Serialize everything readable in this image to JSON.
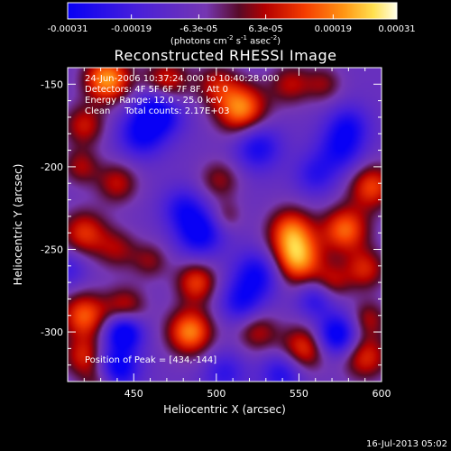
{
  "colorbar": {
    "tick_labels": [
      "-0.00031",
      "-0.00019",
      "-6.3e-05",
      "6.3e-05",
      "0.00019",
      "0.00031"
    ],
    "unit_prefix": "(photons cm",
    "unit_exp1": "-2",
    "unit_mid": " s",
    "unit_exp2": "-1",
    "unit_mid2": " asec",
    "unit_exp3": "-2",
    "unit_suffix": ")"
  },
  "header": {
    "title": "Reconstructed RHESSI Image"
  },
  "info": {
    "line1": "24-Jun-2006 10:37:24.000 to 10:40:28.000",
    "line2": "Detectors: 4F 5F 6F 7F 8F, Att 0",
    "line3": "Energy Range: 12.0 - 25.0 keV",
    "line4": "Clean     Total counts: 2.17E+03",
    "peak": "Position of Peak = [434,-144]"
  },
  "footer": {
    "date": "16-Jul-2013 05:02"
  },
  "colors": {
    "background": "#000000",
    "text": "#ffffff"
  },
  "chart_data": {
    "type": "heatmap",
    "title": "Reconstructed RHESSI Image",
    "xlabel": "Heliocentric X (arcsec)",
    "ylabel": "Heliocentric Y (arcsec)",
    "xlim": [
      410,
      600
    ],
    "ylim": [
      -330,
      -140
    ],
    "x_ticks": [
      450,
      500,
      550,
      600
    ],
    "y_ticks": [
      -150,
      -200,
      -250,
      -300
    ],
    "colorbar_range": [
      -0.00031,
      0.00031
    ],
    "colorbar_ticks": [
      -0.00031,
      -0.00019,
      -6.3e-05,
      6.3e-05,
      0.00019,
      0.00031
    ],
    "colormap": "blue-purple-red-orange-yellow-white",
    "peak": [
      434,
      -144
    ],
    "sources": [
      {
        "x": 434,
        "y": -147,
        "v": 0.0003,
        "w": 10
      },
      {
        "x": 470,
        "y": -148,
        "v": 0.00018,
        "w": 10
      },
      {
        "x": 515,
        "y": -165,
        "v": 0.00029,
        "w": 11
      },
      {
        "x": 500,
        "y": -150,
        "v": 0.00014,
        "w": 9
      },
      {
        "x": 545,
        "y": -150,
        "v": 0.00015,
        "w": 9
      },
      {
        "x": 565,
        "y": -150,
        "v": 0.00012,
        "w": 8
      },
      {
        "x": 420,
        "y": -175,
        "v": 0.00017,
        "w": 9
      },
      {
        "x": 418,
        "y": -200,
        "v": 0.00014,
        "w": 8
      },
      {
        "x": 420,
        "y": -240,
        "v": 0.0002,
        "w": 10
      },
      {
        "x": 440,
        "y": -250,
        "v": 0.00013,
        "w": 9
      },
      {
        "x": 460,
        "y": -257,
        "v": 0.00012,
        "w": 8
      },
      {
        "x": 440,
        "y": -210,
        "v": 0.00016,
        "w": 9
      },
      {
        "x": 502,
        "y": -208,
        "v": 0.00013,
        "w": 9
      },
      {
        "x": 506,
        "y": -230,
        "v": 0.0001,
        "w": 7
      },
      {
        "x": 549,
        "y": -256,
        "v": 0.0003,
        "w": 11
      },
      {
        "x": 545,
        "y": -238,
        "v": 0.00022,
        "w": 10
      },
      {
        "x": 578,
        "y": -238,
        "v": 0.00025,
        "w": 10
      },
      {
        "x": 594,
        "y": -212,
        "v": 0.00022,
        "w": 10
      },
      {
        "x": 590,
        "y": -262,
        "v": 0.00018,
        "w": 9
      },
      {
        "x": 570,
        "y": -270,
        "v": 0.00014,
        "w": 8
      },
      {
        "x": 484,
        "y": -300,
        "v": 0.00028,
        "w": 10
      },
      {
        "x": 488,
        "y": -270,
        "v": 0.00021,
        "w": 9
      },
      {
        "x": 420,
        "y": -290,
        "v": 0.00024,
        "w": 10
      },
      {
        "x": 445,
        "y": -285,
        "v": 0.00017,
        "w": 9
      },
      {
        "x": 420,
        "y": -315,
        "v": 0.00018,
        "w": 9
      },
      {
        "x": 525,
        "y": -300,
        "v": 0.00015,
        "w": 9
      },
      {
        "x": 553,
        "y": -310,
        "v": 0.00022,
        "w": 10
      },
      {
        "x": 592,
        "y": -292,
        "v": 0.00014,
        "w": 8
      },
      {
        "x": 590,
        "y": -315,
        "v": 0.0002,
        "w": 10
      },
      {
        "x": 430,
        "y": -330,
        "v": 0.00012,
        "w": 8
      },
      {
        "x": 440,
        "y": -322,
        "v": -0.00026,
        "w": 9
      },
      {
        "x": 444,
        "y": -300,
        "v": -0.0003,
        "w": 8
      },
      {
        "x": 455,
        "y": -180,
        "v": -0.00022,
        "w": 10
      },
      {
        "x": 470,
        "y": -170,
        "v": -0.00012,
        "w": 9
      },
      {
        "x": 462,
        "y": -165,
        "v": -0.00018,
        "w": 8
      },
      {
        "x": 490,
        "y": -240,
        "v": -0.00024,
        "w": 10
      },
      {
        "x": 480,
        "y": -225,
        "v": -0.00016,
        "w": 9
      },
      {
        "x": 525,
        "y": -188,
        "v": -0.0002,
        "w": 10
      },
      {
        "x": 575,
        "y": -190,
        "v": -0.00018,
        "w": 10
      },
      {
        "x": 580,
        "y": -175,
        "v": -0.00016,
        "w": 9
      },
      {
        "x": 560,
        "y": -205,
        "v": -0.00014,
        "w": 9
      },
      {
        "x": 525,
        "y": -265,
        "v": -0.00022,
        "w": 10
      },
      {
        "x": 515,
        "y": -282,
        "v": -0.00018,
        "w": 9
      },
      {
        "x": 560,
        "y": -280,
        "v": -0.00016,
        "w": 8
      },
      {
        "x": 573,
        "y": -302,
        "v": -0.00028,
        "w": 9
      },
      {
        "x": 540,
        "y": -325,
        "v": -0.00018,
        "w": 9
      },
      {
        "x": 410,
        "y": -262,
        "v": -0.00012,
        "w": 8
      },
      {
        "x": 505,
        "y": -325,
        "v": -0.00014,
        "w": 9
      }
    ]
  }
}
